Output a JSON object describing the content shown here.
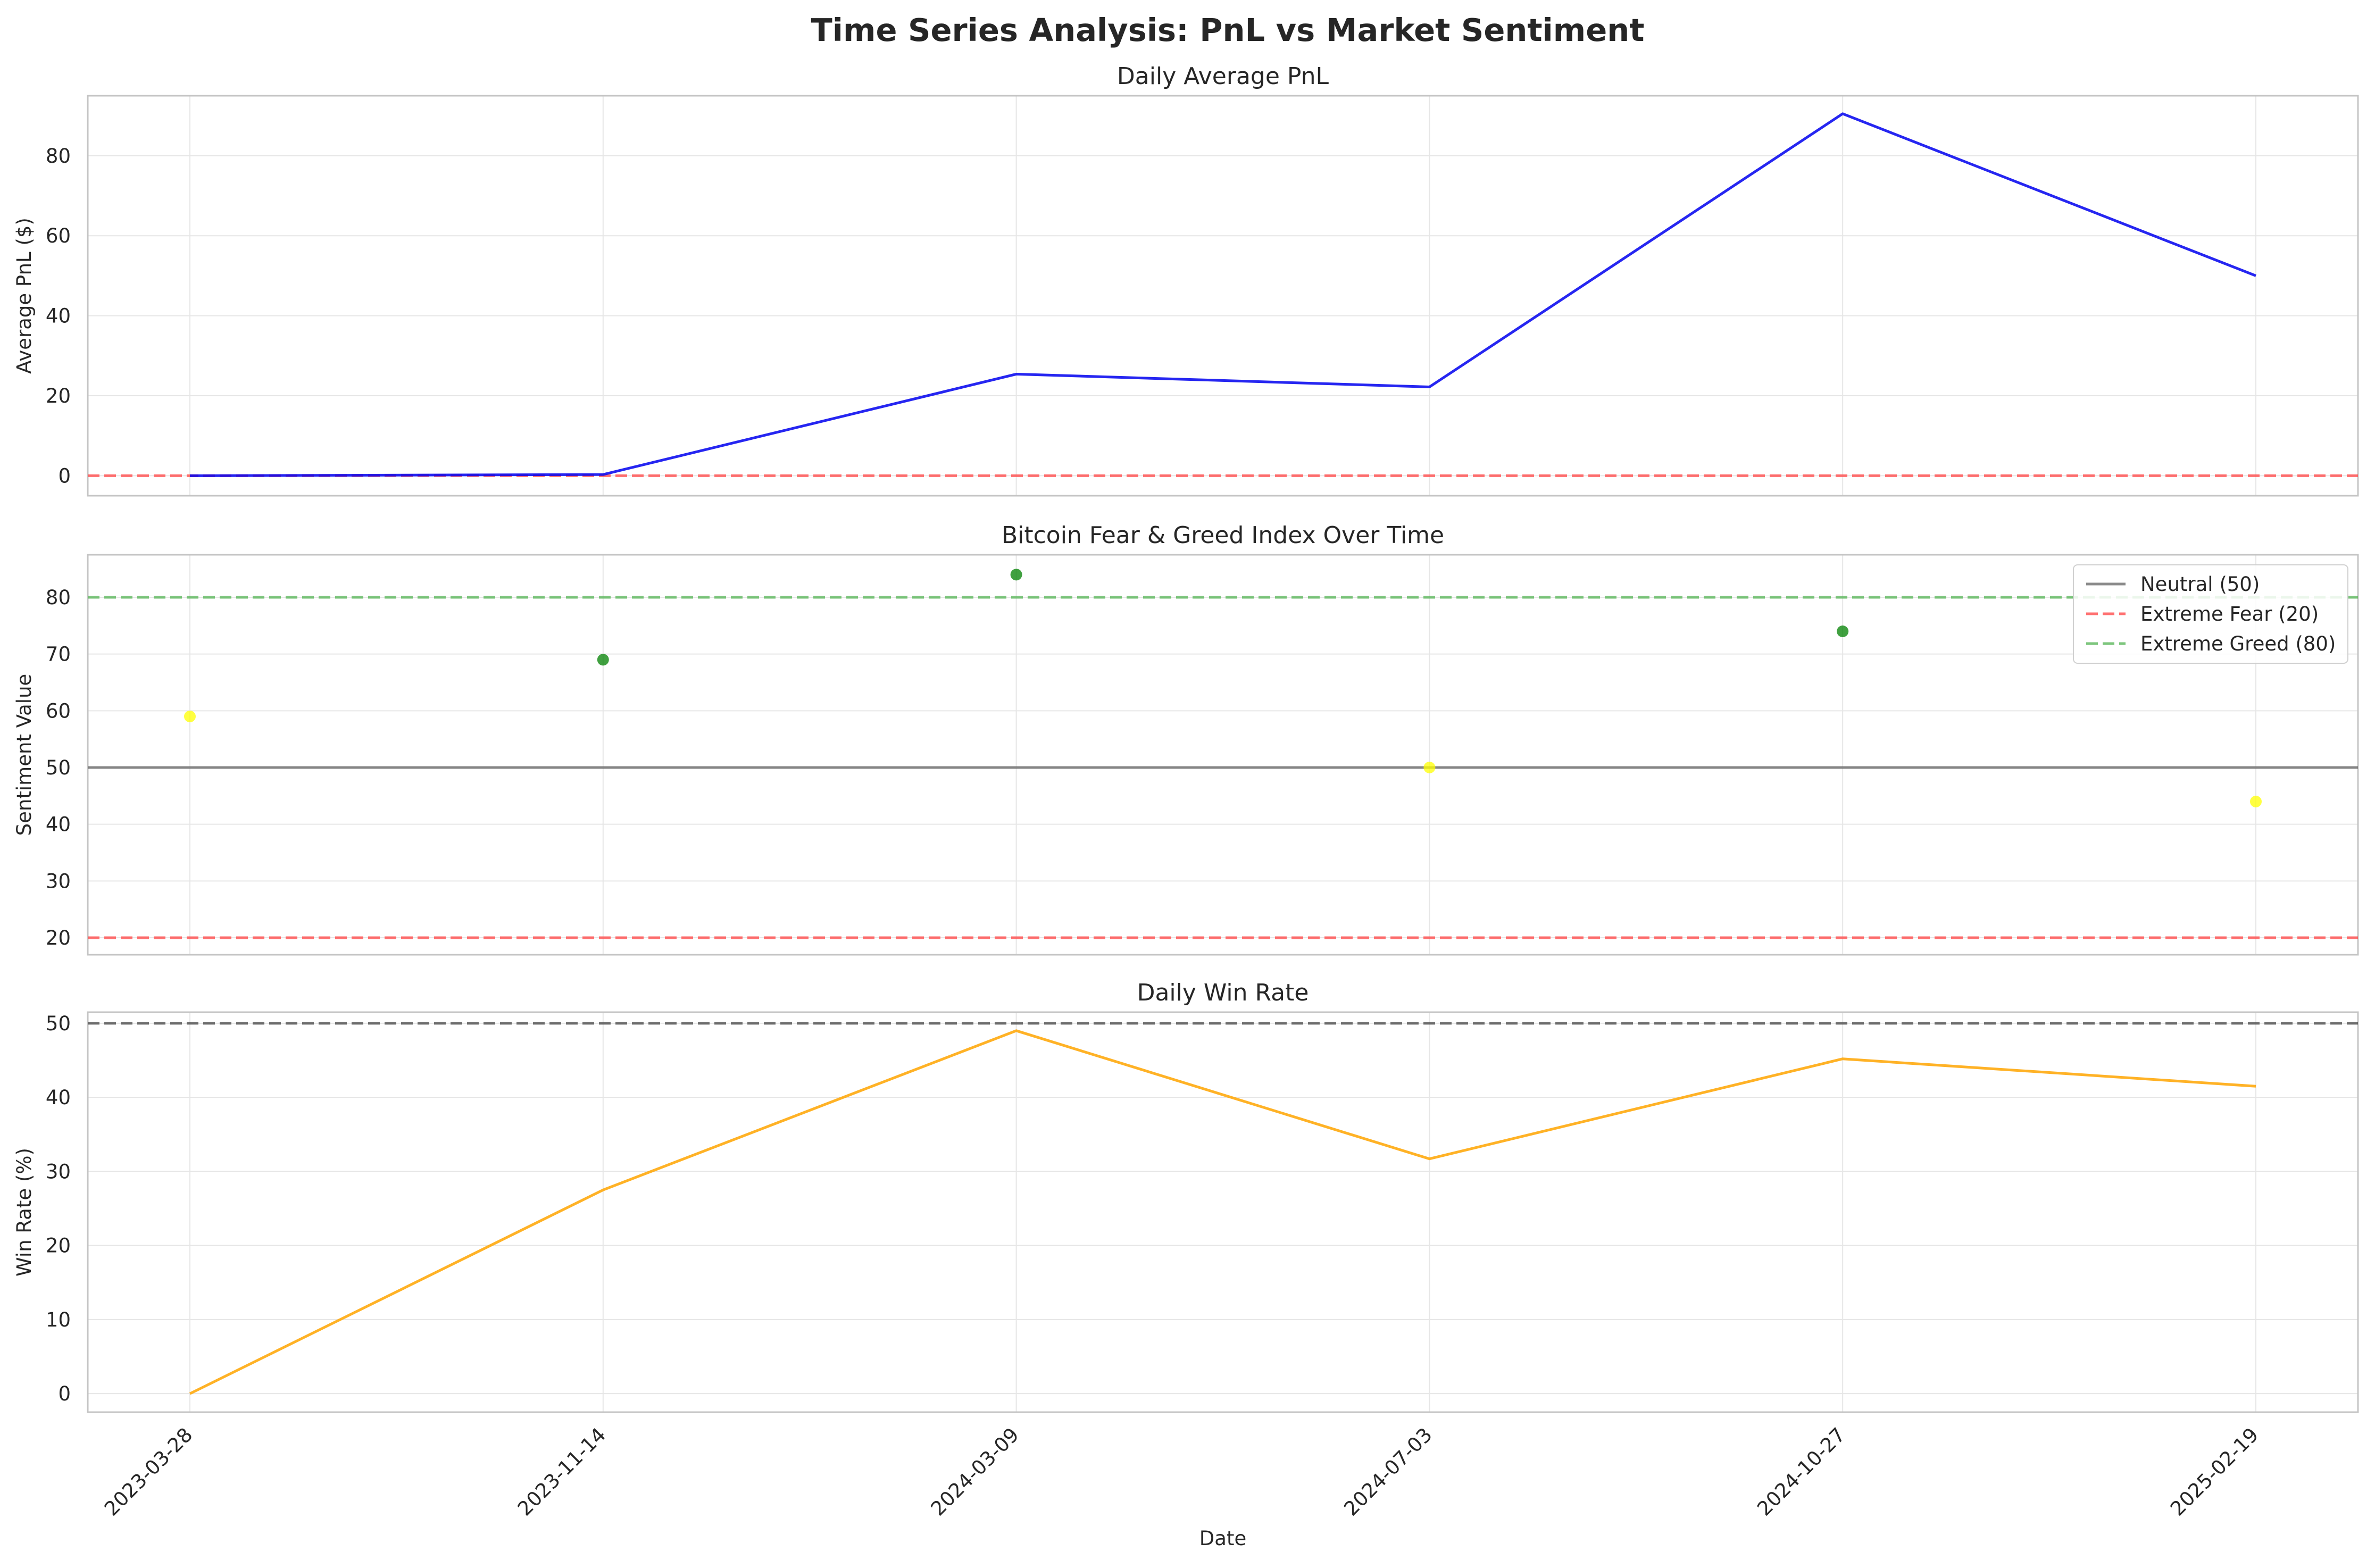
{
  "figure": {
    "title": "Time Series Analysis: PnL vs Market Sentiment",
    "xlabel": "Date"
  },
  "chart_data": [
    {
      "type": "line",
      "title": "Daily Average PnL",
      "xlabel": "",
      "ylabel": "Average PnL ($)",
      "x": [
        "2023-03-28",
        "2023-11-14",
        "2024-03-09",
        "2024-07-03",
        "2024-10-27",
        "2025-02-19"
      ],
      "series": [
        {
          "values": [
            0.0,
            0.3,
            25.4,
            22.2,
            90.5,
            50.0
          ],
          "color": "#0000ee"
        }
      ],
      "reference_lines": [
        {
          "y": 0,
          "style": "dashed",
          "color": "#ff4d4d"
        }
      ],
      "ylim": [
        -5,
        95
      ],
      "yticks": [
        0,
        20,
        40,
        60,
        80
      ],
      "grid": true
    },
    {
      "type": "scatter",
      "title": "Bitcoin Fear & Greed Index Over Time",
      "xlabel": "",
      "ylabel": "Sentiment Value",
      "x": [
        "2023-03-28",
        "2023-11-14",
        "2024-03-09",
        "2024-07-03",
        "2024-10-27",
        "2025-02-19"
      ],
      "series": [
        {
          "values": [
            59,
            69,
            84,
            50,
            74,
            44
          ],
          "colors": [
            "#ffff00",
            "#008000",
            "#008000",
            "#ffff00",
            "#008000",
            "#ffff00"
          ]
        }
      ],
      "reference_lines": [
        {
          "y": 50,
          "style": "solid",
          "color": "#6e6e6e",
          "label": "Neutral (50)"
        },
        {
          "y": 20,
          "style": "dashed",
          "color": "#ff4d4d",
          "label": "Extreme Fear (20)"
        },
        {
          "y": 80,
          "style": "dashed",
          "color": "#5cb85c",
          "label": "Extreme Greed (80)"
        }
      ],
      "ylim": [
        17,
        87.5
      ],
      "yticks": [
        20,
        30,
        40,
        50,
        60,
        70,
        80
      ],
      "legend": "top-right",
      "grid": true
    },
    {
      "type": "line",
      "title": "Daily Win Rate",
      "xlabel": "Date",
      "ylabel": "Win Rate (%)",
      "x": [
        "2023-03-28",
        "2023-11-14",
        "2024-03-09",
        "2024-07-03",
        "2024-10-27",
        "2025-02-19"
      ],
      "series": [
        {
          "values": [
            0.0,
            27.5,
            49.0,
            31.7,
            45.2,
            41.5
          ],
          "color": "#ffa500"
        }
      ],
      "reference_lines": [
        {
          "y": 50,
          "style": "dashed",
          "color": "#4d4d4d"
        }
      ],
      "ylim": [
        -2.5,
        51.5
      ],
      "yticks": [
        0,
        10,
        20,
        30,
        40,
        50
      ],
      "grid": true
    }
  ]
}
